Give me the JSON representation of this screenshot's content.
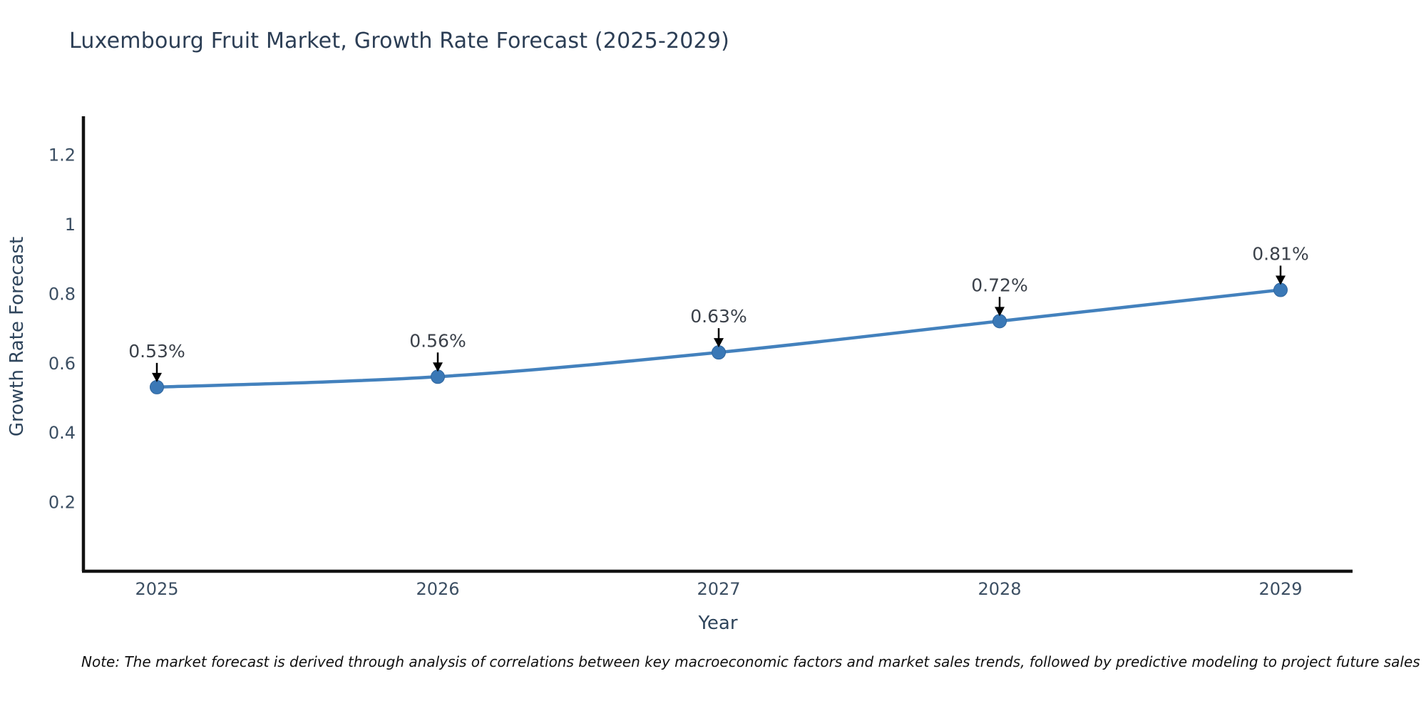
{
  "title": "Luxembourg Fruit Market, Growth Rate Forecast (2025-2029)",
  "note": "Note: The market forecast is derived through analysis of correlations between key macroeconomic factors and market sales trends, followed by predictive modeling to project future sales",
  "chart_data": {
    "type": "line",
    "title": "Luxembourg Fruit Market, Growth Rate Forecast (2025-2029)",
    "xlabel": "Year",
    "ylabel": "Growth Rate Forecast",
    "categories": [
      "2025",
      "2026",
      "2027",
      "2028",
      "2029"
    ],
    "values": [
      0.53,
      0.56,
      0.63,
      0.72,
      0.81
    ],
    "point_labels": [
      "0.53%",
      "0.56%",
      "0.63%",
      "0.72%",
      "0.81%"
    ],
    "yticks": [
      0.2,
      0.4,
      0.6,
      0.8,
      1,
      1.2
    ],
    "ylim": [
      0,
      1.31
    ],
    "grid": false,
    "legend": "none",
    "line_shape": "spline",
    "annotation_arrows": true
  },
  "colors": {
    "background": "#ffffff",
    "line": "#4381bd",
    "marker_fill": "#3a78b6",
    "marker_edge": "#30669e",
    "axis": "#121212",
    "arrow": "#000000",
    "title_text": "#2c3e55",
    "tick_text": "#3c4f63",
    "label_text": "#3b414a",
    "note_text": "#111111"
  }
}
